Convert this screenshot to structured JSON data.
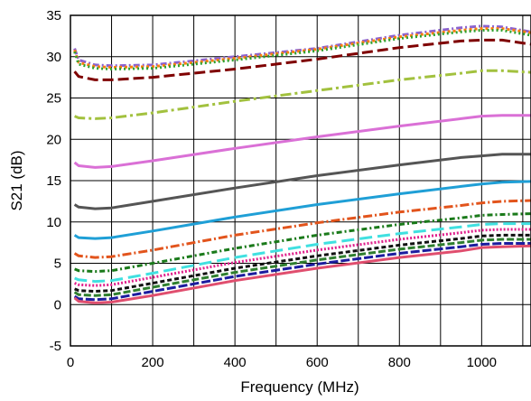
{
  "chart_data": {
    "type": "line",
    "xlabel": "Frequency (MHz)",
    "ylabel": "S21 (dB)",
    "xlim": [
      0,
      1120
    ],
    "ylim": [
      -5,
      35
    ],
    "xticks": [
      0,
      200,
      400,
      600,
      800,
      1000
    ],
    "yticks": [
      -5,
      0,
      5,
      10,
      15,
      20,
      25,
      30,
      35
    ],
    "grid": true,
    "legend": "none",
    "series": [
      {
        "color": "#8c63cf",
        "dash": "7,3,2,3",
        "x": [
          10,
          20,
          60,
          100,
          200,
          400,
          600,
          800,
          950,
          1000,
          1050,
          1120
        ],
        "y": [
          31,
          29.6,
          29,
          28.9,
          29,
          30,
          31,
          32.6,
          33.5,
          33.7,
          33.6,
          33
        ]
      },
      {
        "color": "#ff7f0e",
        "dash": "3,3",
        "x": [
          10,
          20,
          60,
          100,
          200,
          400,
          600,
          800,
          950,
          1000,
          1050,
          1120
        ],
        "y": [
          30.8,
          29.3,
          28.8,
          28.7,
          28.8,
          29.8,
          30.9,
          32.4,
          33.2,
          33.4,
          33.4,
          32.9
        ]
      },
      {
        "color": "#2ca02c",
        "dash": "2,3",
        "x": [
          10,
          20,
          60,
          100,
          200,
          400,
          600,
          800,
          950,
          1000,
          1050,
          1120
        ],
        "y": [
          30.6,
          29.1,
          28.6,
          28.5,
          28.6,
          29.6,
          30.7,
          32.2,
          33,
          33.2,
          33.2,
          32.6
        ]
      },
      {
        "color": "#7f0000",
        "dash": "12,5",
        "x": [
          10,
          20,
          60,
          100,
          200,
          400,
          600,
          800,
          950,
          1000,
          1050,
          1120
        ],
        "y": [
          28.2,
          27.6,
          27.2,
          27.2,
          27.5,
          28.5,
          29.7,
          31.1,
          31.9,
          32,
          32,
          31.5
        ]
      },
      {
        "color": "#a2c13e",
        "dash": "12,4,3,4",
        "x": [
          10,
          20,
          60,
          100,
          200,
          400,
          600,
          800,
          950,
          1000,
          1050,
          1120
        ],
        "y": [
          22.8,
          22.6,
          22.5,
          22.6,
          23.2,
          24.6,
          25.9,
          27.2,
          28,
          28.3,
          28.3,
          28.1
        ]
      },
      {
        "color": "#da70d6",
        "dash": "",
        "x": [
          10,
          20,
          60,
          100,
          200,
          400,
          600,
          800,
          950,
          1000,
          1050,
          1120
        ],
        "y": [
          17.2,
          16.8,
          16.6,
          16.7,
          17.4,
          18.9,
          20.3,
          21.6,
          22.5,
          22.8,
          22.9,
          22.9
        ]
      },
      {
        "color": "#555555",
        "dash": "",
        "x": [
          10,
          20,
          60,
          100,
          200,
          400,
          600,
          800,
          950,
          1000,
          1050,
          1120
        ],
        "y": [
          12.1,
          11.8,
          11.6,
          11.7,
          12.5,
          14.1,
          15.6,
          16.9,
          17.8,
          18,
          18.2,
          18.2
        ]
      },
      {
        "color": "#1f9fd6",
        "dash": "",
        "x": [
          10,
          20,
          60,
          100,
          200,
          400,
          600,
          800,
          950,
          1000,
          1050,
          1120
        ],
        "y": [
          8.4,
          8.1,
          8,
          8.1,
          8.9,
          10.6,
          12.1,
          13.4,
          14.3,
          14.6,
          14.8,
          14.9
        ]
      },
      {
        "color": "#e2541c",
        "dash": "10,3,2,3",
        "x": [
          10,
          20,
          60,
          100,
          200,
          400,
          600,
          800,
          950,
          1000,
          1050,
          1120
        ],
        "y": [
          6.2,
          5.9,
          5.7,
          5.8,
          6.6,
          8.4,
          9.9,
          11.2,
          12,
          12.3,
          12.5,
          12.6
        ]
      },
      {
        "color": "#1a7a1a",
        "dash": "6,3,2,3",
        "x": [
          10,
          20,
          60,
          100,
          200,
          400,
          600,
          800,
          950,
          1000,
          1050,
          1120
        ],
        "y": [
          4.3,
          4.1,
          4,
          4.1,
          5,
          6.8,
          8.4,
          9.7,
          10.5,
          10.8,
          10.9,
          11
        ]
      },
      {
        "color": "#40e0e0",
        "dash": "14,6",
        "x": [
          10,
          20,
          60,
          100,
          200,
          400,
          600,
          800,
          950,
          1000,
          1050,
          1120
        ],
        "y": [
          3.2,
          3,
          2.8,
          2.9,
          3.8,
          5.7,
          7.3,
          8.6,
          9.4,
          9.7,
          9.8,
          9.8
        ]
      },
      {
        "color": "#e0208c",
        "dash": "2,2",
        "x": [
          10,
          20,
          60,
          100,
          200,
          400,
          600,
          800,
          950,
          1000,
          1050,
          1120
        ],
        "y": [
          2.6,
          2.4,
          2.3,
          2.4,
          3.3,
          5.1,
          6.6,
          7.9,
          8.7,
          9,
          9.1,
          9.1
        ]
      },
      {
        "color": "#111111",
        "dash": "5,3",
        "x": [
          10,
          20,
          60,
          100,
          200,
          400,
          600,
          800,
          950,
          1000,
          1050,
          1120
        ],
        "y": [
          1.9,
          1.7,
          1.6,
          1.7,
          2.6,
          4.4,
          5.9,
          7.2,
          8,
          8.3,
          8.4,
          8.4
        ]
      },
      {
        "color": "#2f7f2f",
        "dash": "8,3",
        "x": [
          10,
          20,
          60,
          100,
          200,
          400,
          600,
          800,
          950,
          1000,
          1050,
          1120
        ],
        "y": [
          1.5,
          1.2,
          1.1,
          1.2,
          2.1,
          3.9,
          5.4,
          6.7,
          7.5,
          7.8,
          7.9,
          7.9
        ]
      },
      {
        "color": "#1c1c9e",
        "dash": "10,3",
        "x": [
          10,
          20,
          60,
          100,
          200,
          400,
          600,
          800,
          950,
          1000,
          1050,
          1120
        ],
        "y": [
          1,
          0.7,
          0.6,
          0.7,
          1.6,
          3.4,
          4.9,
          6.2,
          7,
          7.3,
          7.4,
          7.4
        ]
      },
      {
        "color": "#e04e6e",
        "dash": "",
        "x": [
          10,
          20,
          60,
          100,
          200,
          400,
          600,
          800,
          950,
          1000,
          1050,
          1120
        ],
        "y": [
          0.8,
          0.4,
          0.2,
          0.3,
          1.1,
          2.9,
          4.4,
          5.7,
          6.5,
          6.9,
          7,
          7.1
        ]
      }
    ]
  }
}
